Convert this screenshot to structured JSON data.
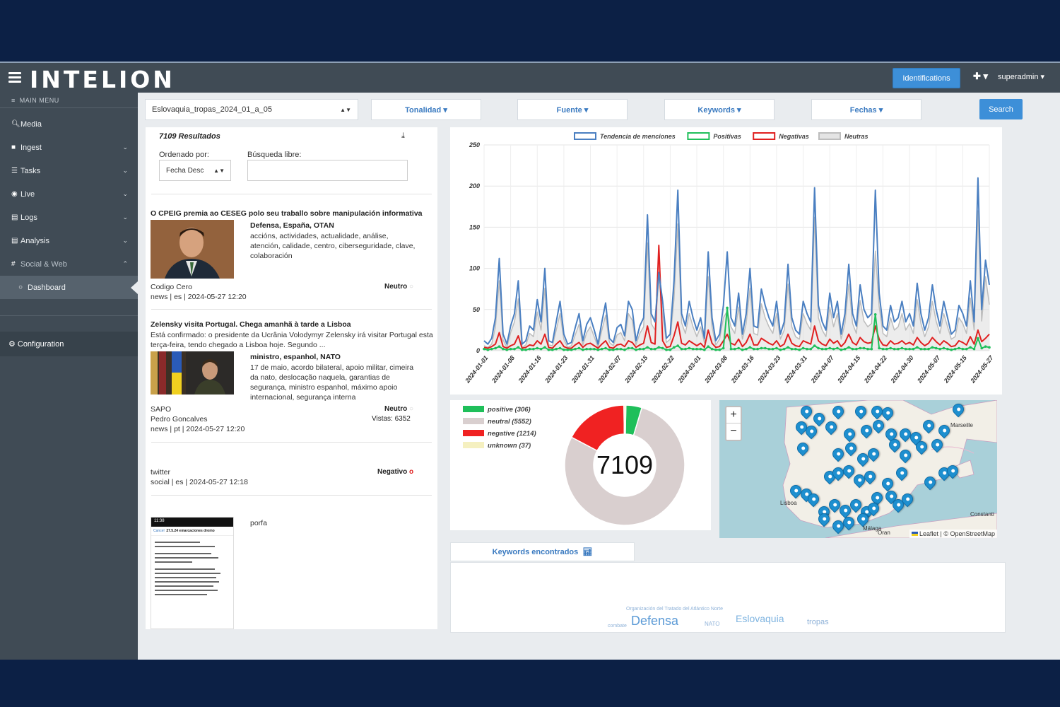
{
  "app": {
    "logo": "INTELION",
    "identifications": "Identifications",
    "user": "superadmin ▾",
    "plus": "✚ ▾"
  },
  "sidebar": {
    "main_menu": "MAIN MENU",
    "items": [
      {
        "label": "Media",
        "icon": "search-icon"
      },
      {
        "label": "Ingest",
        "icon": "video-icon"
      },
      {
        "label": "Tasks",
        "icon": "list-icon"
      },
      {
        "label": "Live",
        "icon": "rss-icon"
      },
      {
        "label": "Logs",
        "icon": "file-icon"
      },
      {
        "label": "Analysis",
        "icon": "file-icon"
      },
      {
        "label": "Social & Web",
        "icon": "hash-icon"
      }
    ],
    "dashboard": "Dashboard",
    "configuration": "Configuration"
  },
  "filters": {
    "dataset": "Eslovaquia_tropas_2024_01_a_05",
    "tonalidad": "Tonalidad ▾",
    "fuente": "Fuente ▾",
    "keywords": "Keywords ▾",
    "fechas": "Fechas ▾",
    "search": "Search"
  },
  "results": {
    "count": "7109 Resultados",
    "ordered_by": "Ordenado por:",
    "ordered_value": "Fecha Desc",
    "free_search": "Búsqueda libre:",
    "articles": [
      {
        "title": "O CPEIG premia ao CESEG polo seu traballo sobre manipulación informativa",
        "keywords": "Defensa, España, OTAN",
        "body": "accións, actividades, actualidade, análise, atención, calidade, centro, ciberseguridade, clave, colaboración",
        "source": "Codigo Cero",
        "meta": "news | es | 2024-05-27 12:20",
        "tone": "Neutro"
      },
      {
        "title": "Zelensky visita Portugal. Chega amanhã à tarde a Lisboa",
        "summary": "Está confirmado: o presidente da Ucrânia Volodymyr Zelensky irá visitar Portugal esta terça-feira, tendo chegado a Lisboa hoje. Segundo ...",
        "keywords": "ministro, espanhol, NATO",
        "body": "17 de maio, acordo bilateral, apoio militar, cimeira da nato, deslocação naquela, garantias de segurança, ministro espanhol, máximo apoio internacional, segurança interna",
        "source": "SAPO",
        "author": "Pedro Goncalves",
        "meta": "news | pt | 2024-05-27 12:20",
        "tone": "Neutro",
        "views": "Vistas: 6352"
      },
      {
        "source": "twitter",
        "meta": "social | es | 2024-05-27 12:18",
        "tone": "Negativo"
      },
      {
        "body": "porfa",
        "phone_time": "11:38",
        "phone_title": "27.5.24 emarcaciones dromo",
        "phone_cancel": "Cancel"
      }
    ]
  },
  "chart_data": {
    "type": "line",
    "legend": [
      "Tendencia de menciones",
      "Positivas",
      "Negativas",
      "Neutras"
    ],
    "x_ticks": [
      "2024-01-01",
      "2024-01-08",
      "2024-01-16",
      "2024-01-23",
      "2024-01-31",
      "2024-02-07",
      "2024-02-15",
      "2024-02-22",
      "2024-03-01",
      "2024-03-08",
      "2024-03-16",
      "2024-03-23",
      "2024-03-31",
      "2024-04-07",
      "2024-04-15",
      "2024-04-22",
      "2024-04-30",
      "2024-05-07",
      "2024-05-15",
      "2024-05-27"
    ],
    "y_ticks": [
      0,
      50,
      100,
      150,
      200,
      250
    ],
    "ylim": [
      0,
      250
    ],
    "series": [
      {
        "name": "Tendencia de menciones",
        "color": "#4a7fc1",
        "values": [
          12,
          8,
          15,
          40,
          112,
          20,
          8,
          30,
          45,
          85,
          8,
          12,
          30,
          25,
          62,
          35,
          100,
          12,
          10,
          35,
          60,
          20,
          8,
          10,
          28,
          45,
          12,
          32,
          40,
          25,
          8,
          35,
          58,
          15,
          10,
          28,
          32,
          18,
          60,
          50,
          12,
          30,
          40,
          165,
          45,
          35,
          95,
          60,
          15,
          20,
          85,
          195,
          45,
          30,
          60,
          40,
          25,
          40,
          15,
          120,
          40,
          12,
          20,
          55,
          120,
          40,
          30,
          70,
          20,
          45,
          100,
          30,
          28,
          75,
          55,
          40,
          30,
          60,
          20,
          35,
          105,
          40,
          25,
          20,
          60,
          45,
          35,
          198,
          55,
          35,
          25,
          70,
          40,
          60,
          20,
          45,
          105,
          45,
          30,
          80,
          50,
          40,
          45,
          195,
          70,
          30,
          25,
          55,
          35,
          40,
          60,
          35,
          45,
          30,
          82,
          45,
          25,
          40,
          80,
          50,
          30,
          60,
          40,
          20,
          25,
          55,
          45,
          30,
          85,
          35,
          210,
          50,
          110,
          80
        ]
      },
      {
        "name": "Positivas",
        "color": "#1fbf5a",
        "values": [
          2,
          1,
          2,
          3,
          5,
          2,
          1,
          2,
          2,
          4,
          1,
          1,
          2,
          2,
          3,
          2,
          4,
          1,
          1,
          2,
          3,
          1,
          1,
          1,
          2,
          3,
          1,
          2,
          2,
          2,
          1,
          2,
          3,
          1,
          1,
          2,
          2,
          1,
          3,
          3,
          1,
          2,
          2,
          4,
          2,
          2,
          4,
          3,
          1,
          1,
          4,
          6,
          2,
          2,
          3,
          2,
          2,
          2,
          1,
          5,
          2,
          1,
          1,
          3,
          52,
          2,
          2,
          3,
          1,
          2,
          4,
          2,
          2,
          3,
          3,
          2,
          2,
          3,
          1,
          2,
          4,
          2,
          2,
          1,
          3,
          2,
          2,
          6,
          3,
          2,
          2,
          3,
          2,
          3,
          1,
          2,
          4,
          2,
          2,
          3,
          3,
          2,
          2,
          44,
          3,
          2,
          2,
          3,
          2,
          2,
          3,
          2,
          2,
          2,
          4,
          2,
          2,
          2,
          4,
          3,
          2,
          3,
          2,
          1,
          2,
          3,
          2,
          2,
          4,
          2,
          15,
          3,
          5,
          4
        ]
      },
      {
        "name": "Negativas",
        "color": "#e02020",
        "values": [
          4,
          3,
          5,
          8,
          22,
          5,
          3,
          6,
          8,
          18,
          3,
          4,
          7,
          6,
          12,
          8,
          20,
          4,
          3,
          8,
          12,
          5,
          3,
          3,
          7,
          10,
          4,
          8,
          9,
          6,
          3,
          8,
          12,
          4,
          3,
          7,
          8,
          5,
          12,
          10,
          4,
          7,
          9,
          30,
          10,
          8,
          128,
          12,
          4,
          5,
          18,
          35,
          9,
          7,
          12,
          9,
          6,
          9,
          4,
          25,
          9,
          4,
          5,
          12,
          20,
          9,
          7,
          14,
          5,
          10,
          20,
          7,
          7,
          15,
          12,
          9,
          7,
          12,
          5,
          8,
          20,
          9,
          6,
          5,
          12,
          10,
          8,
          30,
          12,
          8,
          6,
          14,
          9,
          12,
          5,
          10,
          20,
          10,
          7,
          16,
          11,
          9,
          10,
          30,
          14,
          7,
          6,
          12,
          8,
          9,
          12,
          8,
          10,
          7,
          16,
          10,
          6,
          9,
          16,
          11,
          7,
          12,
          9,
          5,
          6,
          12,
          10,
          7,
          17,
          8,
          25,
          11,
          15,
          20
        ]
      },
      {
        "name": "Neutras",
        "color": "#bdbdbd",
        "values": [
          6,
          4,
          8,
          29,
          85,
          13,
          4,
          22,
          35,
          63,
          4,
          7,
          21,
          17,
          47,
          25,
          76,
          7,
          6,
          25,
          45,
          14,
          4,
          6,
          19,
          32,
          7,
          22,
          29,
          17,
          4,
          25,
          43,
          10,
          6,
          19,
          22,
          12,
          45,
          37,
          7,
          21,
          29,
          131,
          33,
          25,
          90,
          45,
          10,
          14,
          63,
          154,
          34,
          21,
          45,
          29,
          17,
          29,
          10,
          90,
          29,
          7,
          14,
          40,
          48,
          29,
          21,
          53,
          14,
          33,
          76,
          21,
          19,
          57,
          40,
          29,
          21,
          45,
          14,
          25,
          81,
          29,
          17,
          14,
          45,
          33,
          25,
          162,
          40,
          25,
          17,
          53,
          29,
          45,
          14,
          33,
          81,
          33,
          21,
          61,
          36,
          29,
          33,
          121,
          53,
          21,
          17,
          40,
          25,
          29,
          45,
          25,
          33,
          21,
          62,
          33,
          17,
          29,
          60,
          36,
          21,
          45,
          29,
          14,
          17,
          40,
          33,
          21,
          64,
          25,
          170,
          36,
          90,
          56
        ]
      }
    ]
  },
  "pie": {
    "total": "7109",
    "legend": [
      {
        "label": "positive (306)",
        "color": "#1fbf5a",
        "value": 306
      },
      {
        "label": "neutral (5552)",
        "color": "#d9cfcf",
        "value": 5552
      },
      {
        "label": "negative (1214)",
        "color": "#f02222",
        "value": 1214
      },
      {
        "label": "unknown (37)",
        "color": "#f5f0c0",
        "value": 37
      }
    ]
  },
  "map": {
    "zoom_in": "+",
    "zoom_out": "−",
    "labels": [
      "Lisboa",
      "Marseille",
      "Málaga",
      "Oran",
      "Constanti"
    ],
    "attribution": "Leaflet | © OpenStreetMap"
  },
  "keywords_found": {
    "tab": "Keywords encontrados",
    "words": [
      {
        "text": "Organización del Tratado del Atlántico Norte"
      },
      {
        "text": "combate"
      },
      {
        "text": "Defensa"
      },
      {
        "text": "NATO"
      },
      {
        "text": "Eslovaquia"
      },
      {
        "text": "tropas"
      }
    ]
  }
}
